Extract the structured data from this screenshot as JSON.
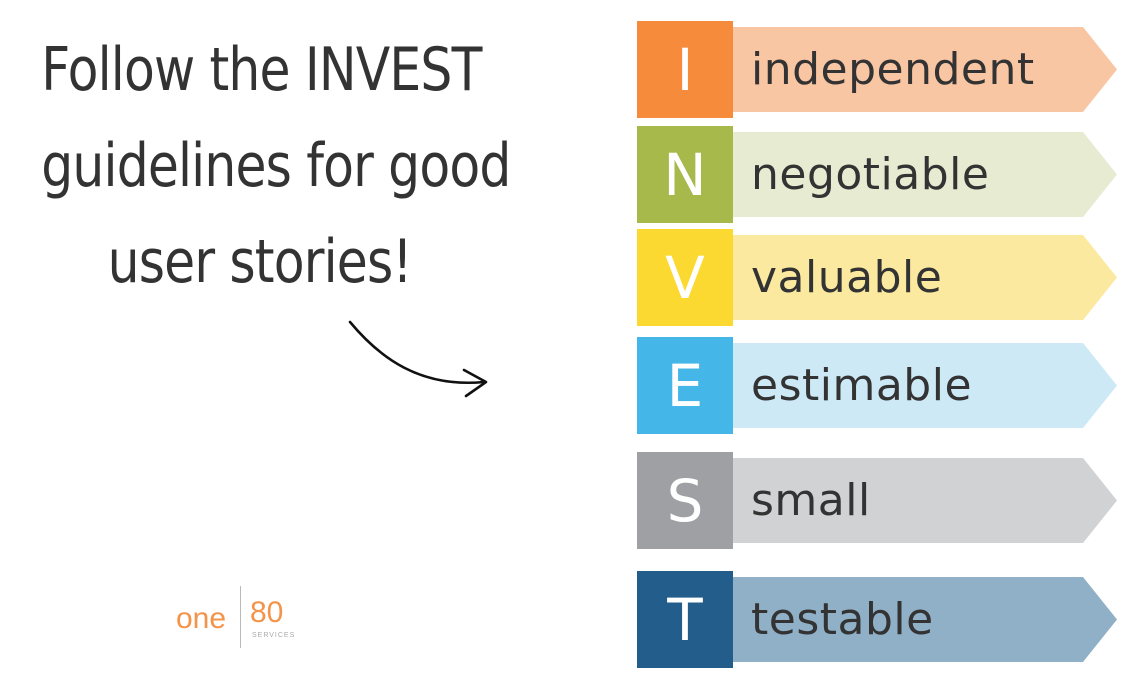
{
  "headline": {
    "line1": "Follow the INVEST",
    "line2": "guidelines for good",
    "line3": "user stories!"
  },
  "logo": {
    "left_text": "one",
    "right_text": "80",
    "sub_text": "SERVICES"
  },
  "invest": [
    {
      "letter": "I",
      "word": "independent",
      "box_color": "#f68b3c",
      "arrow_color": "#f9c6a3"
    },
    {
      "letter": "N",
      "word": "negotiable",
      "box_color": "#a7b94b",
      "arrow_color": "#e7ebd2"
    },
    {
      "letter": "V",
      "word": "valuable",
      "box_color": "#fcd931",
      "arrow_color": "#fbe9a0"
    },
    {
      "letter": "E",
      "word": "estimable",
      "box_color": "#44b7e8",
      "arrow_color": "#cde9f6"
    },
    {
      "letter": "S",
      "word": "small",
      "box_color": "#9fa0a3",
      "arrow_color": "#d1d2d4"
    },
    {
      "letter": "T",
      "word": "testable",
      "box_color": "#235d8b",
      "arrow_color": "#8fb0c7"
    }
  ]
}
